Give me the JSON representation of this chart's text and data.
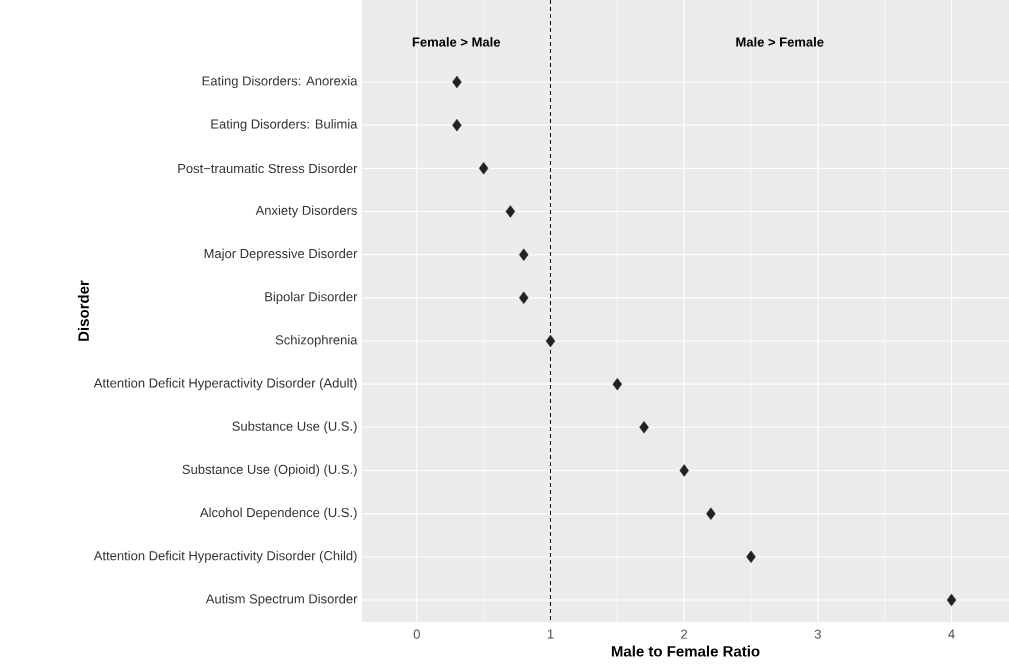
{
  "chart_data": {
    "type": "scatter",
    "orientation": "horizontal",
    "xlabel": "Male to Female Ratio",
    "ylabel": "Disorder",
    "categories": [
      "Eating Disorders: Anorexia",
      "Eating Disorders: Bulimia",
      "Post−traumatic Stress Disorder",
      "Anxiety Disorders",
      "Major Depressive Disorder",
      "Bipolar Disorder",
      "Schizophrenia",
      "Attention Deficit Hyperactivity Disorder (Adult)",
      "Substance Use (U.S.)",
      "Substance Use (Opioid) (U.S.)",
      "Alcohol Dependence (U.S.)",
      "Attention Deficit Hyperactivity Disorder (Child)",
      "Autism Spectrum Disorder"
    ],
    "values": [
      0.3,
      0.3,
      0.5,
      0.7,
      0.8,
      0.8,
      1.0,
      1.5,
      1.7,
      2.0,
      2.2,
      2.5,
      4.0
    ],
    "color": "#222222",
    "marker": "diamond",
    "xlim": [
      -0.41,
      4.43
    ],
    "xticks": [
      0,
      1,
      2,
      3,
      4
    ],
    "grid": true,
    "ref_lines": [
      {
        "axis": "x",
        "value": 1,
        "line_style": "dashed"
      }
    ],
    "annotations": [
      "Female > Male",
      "Male > Female"
    ]
  }
}
